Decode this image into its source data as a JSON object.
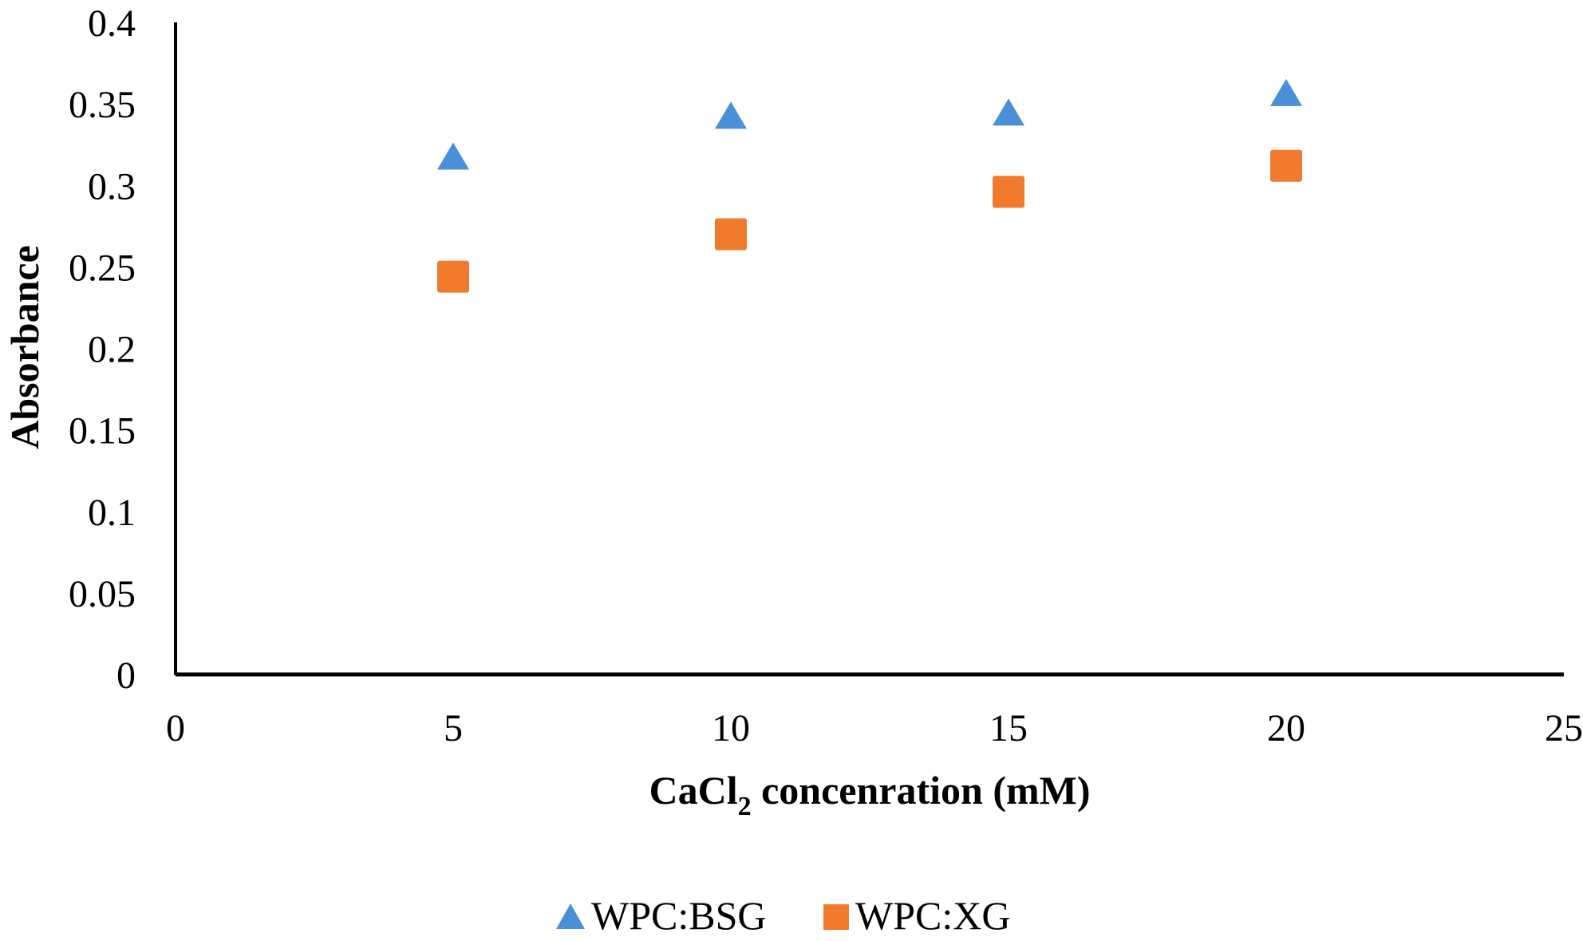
{
  "chart_data": {
    "type": "scatter",
    "xlabel": {
      "main": "CaCl",
      "subscript": "2",
      "rest": " concenration (mM)"
    },
    "ylabel": "Absorbance",
    "xlim": [
      0,
      25
    ],
    "ylim": [
      0,
      0.4
    ],
    "x_ticks": [
      "0",
      "5",
      "10",
      "15",
      "20",
      "25"
    ],
    "y_ticks": [
      "0",
      "0.05",
      "0.1",
      "0.15",
      "0.2",
      "0.25",
      "0.3",
      "0.35",
      "0.4"
    ],
    "grid": false,
    "legend_position": "bottom",
    "series": [
      {
        "name": "WPC:BSG",
        "marker": "triangle",
        "color": "#4a90d9",
        "x": [
          5,
          10,
          15,
          20
        ],
        "y": [
          0.318,
          0.343,
          0.345,
          0.357
        ]
      },
      {
        "name": "WPC:XG",
        "marker": "square",
        "color": "#f07b2d",
        "x": [
          5,
          10,
          15,
          20
        ],
        "y": [
          0.244,
          0.27,
          0.296,
          0.312
        ]
      }
    ]
  }
}
